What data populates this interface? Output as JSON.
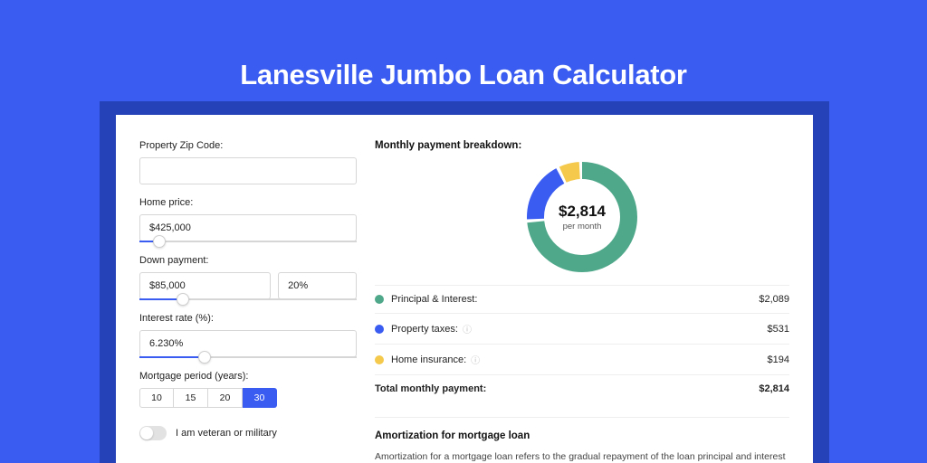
{
  "colors": {
    "page_bg": "#3a5cf0",
    "shadow": "#2542b8",
    "panel_bg": "#ffffff",
    "input_border": "#d6d6d6",
    "slider_fill": "#3a5cf0",
    "divider": "#eeeeee"
  },
  "title": "Lanesville Jumbo Loan Calculator",
  "form": {
    "zip_label": "Property Zip Code:",
    "zip_value": "",
    "price_label": "Home price:",
    "price_value": "$425,000",
    "price_slider_pct": 9,
    "down_label": "Down payment:",
    "down_value": "$85,000",
    "down_pct_value": "20%",
    "down_slider_pct": 20,
    "rate_label": "Interest rate (%):",
    "rate_value": "6.230%",
    "rate_slider_pct": 30,
    "period_label": "Mortgage period (years):",
    "periods": [
      "10",
      "15",
      "20",
      "30"
    ],
    "period_active_index": 3,
    "veteran_label": "I am veteran or military",
    "veteran_on": false
  },
  "breakdown": {
    "title": "Monthly payment breakdown:",
    "donut": {
      "amount": "$2,814",
      "sub": "per month",
      "size": 122,
      "stroke": 19,
      "slices": [
        {
          "color": "#50a88a",
          "value": 2089
        },
        {
          "color": "#3a5cf0",
          "value": 531
        },
        {
          "color": "#f4c94c",
          "value": 194
        }
      ]
    },
    "items": [
      {
        "color": "#50a88a",
        "label": "Principal & Interest:",
        "info": false,
        "value": "$2,089"
      },
      {
        "color": "#3a5cf0",
        "label": "Property taxes:",
        "info": true,
        "value": "$531"
      },
      {
        "color": "#f4c94c",
        "label": "Home insurance:",
        "info": true,
        "value": "$194"
      }
    ],
    "total_label": "Total monthly payment:",
    "total_value": "$2,814"
  },
  "amort": {
    "title": "Amortization for mortgage loan",
    "text": "Amortization for a mortgage loan refers to the gradual repayment of the loan principal and interest over a specified"
  }
}
